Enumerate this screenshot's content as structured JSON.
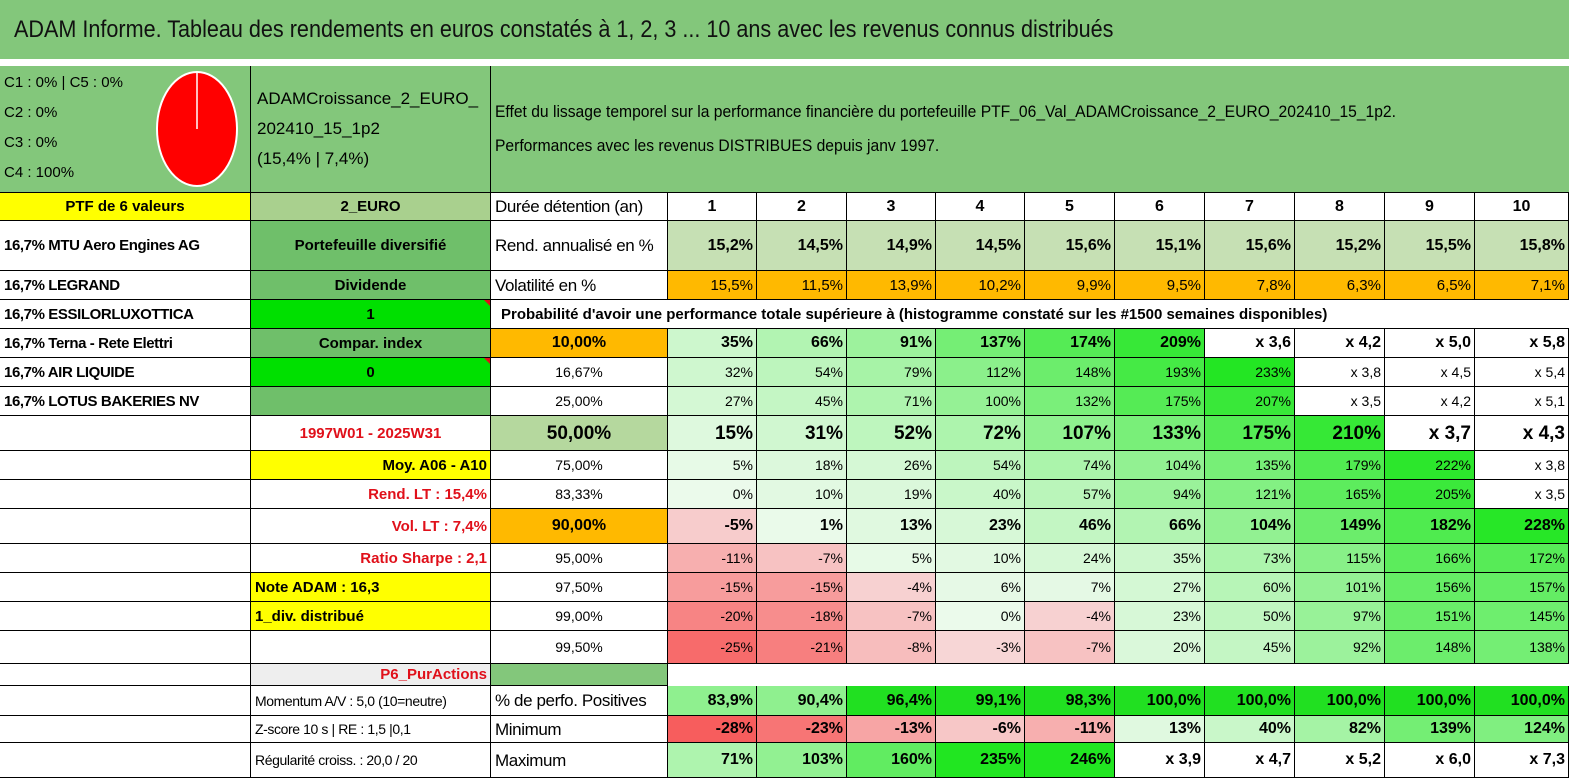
{
  "title": "ADAM Informe. Tableau des rendements en euros constatés à 1, 2, 3 ... 10 ans avec les revenus connus distribués",
  "pie": {
    "labels": [
      "C1 : 0% | C5 : 0%",
      "C2 : 0%",
      "C3 : 0%",
      "C4 : 100%"
    ],
    "value_percent": 100,
    "color": "#ff0000"
  },
  "fund": {
    "name_line1": "ADAMCroissance_2_EURO_",
    "name_line2": "202410_15_1p2",
    "stats": "(15,4% | 7,4%)"
  },
  "description": {
    "line1": "Effet du lissage temporel sur la performance financière du portefeuille PTF_06_Val_ADAMCroissance_2_EURO_202410_15_1p2.",
    "line2": "Performances avec les revenus DISTRIBUES depuis janv 1997."
  },
  "portfolio": {
    "header": "PTF de 6 valeurs",
    "holdings": [
      "16,7% MTU Aero Engines AG",
      "16,7% LEGRAND",
      "16,7% ESSILORLUXOTTICA",
      "16,7% Terna - Rete Elettri",
      "16,7% AIR LIQUIDE",
      "16,7% LOTUS BAKERIES NV"
    ]
  },
  "settings": {
    "currency": "2_EURO",
    "type": "Portefeuille diversifié",
    "income": "Dividende",
    "flag1": "1",
    "compar": "Compar. index",
    "flag2": "0",
    "period": "1997W01 - 2025W31",
    "avg": "Moy. A06 - A10",
    "rend_lt": "Rend. LT : 15,4%",
    "vol_lt": "Vol. LT : 7,4%",
    "sharpe": "Ratio Sharpe : 2,1",
    "note_adam": "Note ADAM : 16,3",
    "div": "1_div. distribué",
    "profile": "P6_PurActions",
    "momentum": "Momentum A/V : 5,0 (10=neutre)",
    "zscore": "Z-score 10 s | RE : 1,5 |0,1",
    "regularite": "Régularité croiss. : 20,0 / 20"
  },
  "table": {
    "duration_label": "Durée détention (an)",
    "years": [
      "1",
      "2",
      "3",
      "4",
      "5",
      "6",
      "7",
      "8",
      "9",
      "10"
    ],
    "rend_label": "Rend. annualisé en %",
    "rend": [
      "15,2%",
      "14,5%",
      "14,9%",
      "14,5%",
      "15,6%",
      "15,1%",
      "15,6%",
      "15,2%",
      "15,5%",
      "15,8%"
    ],
    "vol_label": "Volatilité en %",
    "vol": [
      "15,5%",
      "11,5%",
      "13,9%",
      "10,2%",
      "9,9%",
      "9,5%",
      "7,8%",
      "6,3%",
      "6,5%",
      "7,1%"
    ],
    "proba_title": "Probabilité d'avoir une performance totale supérieure à (histogramme constaté sur les #1500 semaines disponibles)",
    "proba_rows": [
      {
        "p": "10,00%",
        "vals": [
          "35%",
          "66%",
          "91%",
          "137%",
          "174%",
          "209%",
          "x 3,6",
          "x 4,2",
          "x 5,0",
          "x 5,8"
        ]
      },
      {
        "p": "16,67%",
        "vals": [
          "32%",
          "54%",
          "79%",
          "112%",
          "148%",
          "193%",
          "233%",
          "x 3,8",
          "x 4,5",
          "x 5,4"
        ]
      },
      {
        "p": "25,00%",
        "vals": [
          "27%",
          "45%",
          "71%",
          "100%",
          "132%",
          "175%",
          "207%",
          "x 3,5",
          "x 4,2",
          "x 5,1"
        ]
      },
      {
        "p": "50,00%",
        "vals": [
          "15%",
          "31%",
          "52%",
          "72%",
          "107%",
          "133%",
          "175%",
          "210%",
          "x 3,7",
          "x 4,3"
        ]
      },
      {
        "p": "75,00%",
        "vals": [
          "5%",
          "18%",
          "26%",
          "54%",
          "74%",
          "104%",
          "135%",
          "179%",
          "222%",
          "x 3,8"
        ]
      },
      {
        "p": "83,33%",
        "vals": [
          "0%",
          "10%",
          "19%",
          "40%",
          "57%",
          "94%",
          "121%",
          "165%",
          "205%",
          "x 3,5"
        ]
      },
      {
        "p": "90,00%",
        "vals": [
          "-5%",
          "1%",
          "13%",
          "23%",
          "46%",
          "66%",
          "104%",
          "149%",
          "182%",
          "228%"
        ]
      },
      {
        "p": "95,00%",
        "vals": [
          "-11%",
          "-7%",
          "5%",
          "10%",
          "24%",
          "35%",
          "73%",
          "115%",
          "166%",
          "172%"
        ]
      },
      {
        "p": "97,50%",
        "vals": [
          "-15%",
          "-15%",
          "-4%",
          "6%",
          "7%",
          "27%",
          "60%",
          "101%",
          "156%",
          "157%"
        ]
      },
      {
        "p": "99,00%",
        "vals": [
          "-20%",
          "-18%",
          "-7%",
          "0%",
          "-4%",
          "23%",
          "50%",
          "97%",
          "151%",
          "145%"
        ]
      },
      {
        "p": "99,50%",
        "vals": [
          "-25%",
          "-21%",
          "-8%",
          "-3%",
          "-7%",
          "20%",
          "45%",
          "92%",
          "148%",
          "138%"
        ]
      }
    ],
    "summary": [
      {
        "label": "% de perfo. Positives",
        "vals": [
          "83,9%",
          "90,4%",
          "96,4%",
          "99,1%",
          "98,3%",
          "100,0%",
          "100,0%",
          "100,0%",
          "100,0%",
          "100,0%"
        ]
      },
      {
        "label": "Minimum",
        "vals": [
          "-28%",
          "-23%",
          "-13%",
          "-6%",
          "-11%",
          "13%",
          "40%",
          "82%",
          "139%",
          "124%"
        ]
      },
      {
        "label": "Maximum",
        "vals": [
          "71%",
          "103%",
          "160%",
          "235%",
          "246%",
          "x 3,9",
          "x 4,7",
          "x 5,2",
          "x 6,0",
          "x 7,3"
        ]
      }
    ]
  },
  "colors": {
    "header_green": "#83c77b",
    "dark_green": "#6fbf6a",
    "bright_green": "#00e000",
    "yellow": "#ffff00",
    "orange": "#ffb900",
    "light_olive": "#b5d89e",
    "olive": "#a9d08e",
    "red_text": "#e0101a"
  }
}
